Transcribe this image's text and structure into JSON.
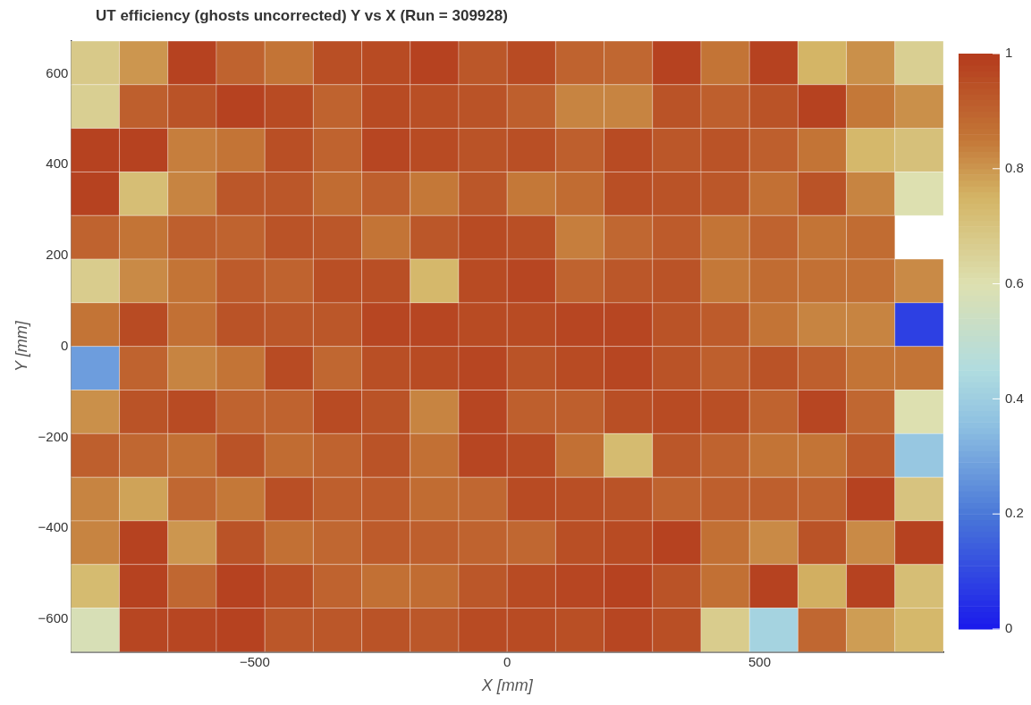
{
  "chart_data": {
    "type": "heatmap",
    "title": "UT efficiency (ghosts uncorrected) Y vs X (Run = 309928)",
    "xlabel": "X [mm]",
    "ylabel": "Y [mm]",
    "xlim": [
      -864,
      864
    ],
    "xticks": [
      -500,
      0,
      500
    ],
    "ylim": [
      -672,
      672
    ],
    "yticks": [
      -600,
      -400,
      -200,
      0,
      200,
      400,
      600
    ],
    "clim": [
      0,
      1
    ],
    "cticks": [
      0,
      0.2,
      0.4,
      0.6,
      0.8,
      1
    ],
    "cells": [
      [
        0.68,
        0.8,
        0.98,
        0.9,
        0.86,
        0.95,
        0.96,
        0.98,
        0.93,
        0.96,
        0.9,
        0.89,
        0.98,
        0.86,
        0.98,
        0.75,
        0.81,
        0.66
      ],
      [
        0.66,
        0.91,
        0.94,
        0.98,
        0.96,
        0.9,
        0.96,
        0.95,
        0.94,
        0.91,
        0.83,
        0.83,
        0.94,
        0.91,
        0.94,
        0.98,
        0.85,
        0.81
      ],
      [
        0.98,
        0.98,
        0.84,
        0.86,
        0.95,
        0.9,
        0.97,
        0.96,
        0.94,
        0.95,
        0.91,
        0.96,
        0.93,
        0.94,
        0.91,
        0.86,
        0.74,
        0.71
      ],
      [
        0.98,
        0.72,
        0.83,
        0.93,
        0.93,
        0.88,
        0.91,
        0.85,
        0.93,
        0.85,
        0.88,
        0.95,
        0.94,
        0.93,
        0.87,
        0.94,
        0.83,
        0.6
      ],
      [
        0.9,
        0.86,
        0.91,
        0.9,
        0.94,
        0.93,
        0.86,
        0.93,
        0.96,
        0.95,
        0.84,
        0.89,
        0.92,
        0.86,
        0.9,
        0.86,
        0.88,
        null
      ],
      [
        0.67,
        0.82,
        0.86,
        0.92,
        0.9,
        0.95,
        0.95,
        0.74,
        0.96,
        0.97,
        0.9,
        0.93,
        0.94,
        0.85,
        0.88,
        0.87,
        0.87,
        0.82
      ],
      [
        0.86,
        0.96,
        0.87,
        0.94,
        0.93,
        0.93,
        0.97,
        0.97,
        0.96,
        0.96,
        0.97,
        0.97,
        0.94,
        0.92,
        0.86,
        0.83,
        0.83,
        0.08
      ],
      [
        0.28,
        0.9,
        0.83,
        0.86,
        0.96,
        0.89,
        0.95,
        0.96,
        0.97,
        0.94,
        0.96,
        0.97,
        0.94,
        0.91,
        0.94,
        0.91,
        0.86,
        0.86
      ],
      [
        0.81,
        0.94,
        0.96,
        0.9,
        0.9,
        0.96,
        0.94,
        0.83,
        0.97,
        0.91,
        0.91,
        0.95,
        0.96,
        0.95,
        0.9,
        0.97,
        0.89,
        0.6
      ],
      [
        0.91,
        0.89,
        0.87,
        0.94,
        0.88,
        0.9,
        0.94,
        0.87,
        0.97,
        0.96,
        0.87,
        0.73,
        0.93,
        0.9,
        0.86,
        0.86,
        0.92,
        0.38
      ],
      [
        0.83,
        0.78,
        0.89,
        0.85,
        0.95,
        0.91,
        0.92,
        0.88,
        0.89,
        0.96,
        0.95,
        0.94,
        0.9,
        0.91,
        0.91,
        0.9,
        0.98,
        0.7
      ],
      [
        0.83,
        0.98,
        0.8,
        0.94,
        0.87,
        0.89,
        0.92,
        0.91,
        0.9,
        0.89,
        0.95,
        0.96,
        0.98,
        0.87,
        0.82,
        0.94,
        0.82,
        0.98
      ],
      [
        0.73,
        0.98,
        0.89,
        0.98,
        0.95,
        0.9,
        0.87,
        0.88,
        0.93,
        0.96,
        0.97,
        0.98,
        0.94,
        0.87,
        0.98,
        0.76,
        0.98,
        0.72
      ],
      [
        0.58,
        0.97,
        0.97,
        0.98,
        0.93,
        0.93,
        0.94,
        0.93,
        0.96,
        0.96,
        0.95,
        0.97,
        0.95,
        0.67,
        0.42,
        0.89,
        0.79,
        0.74
      ]
    ]
  }
}
